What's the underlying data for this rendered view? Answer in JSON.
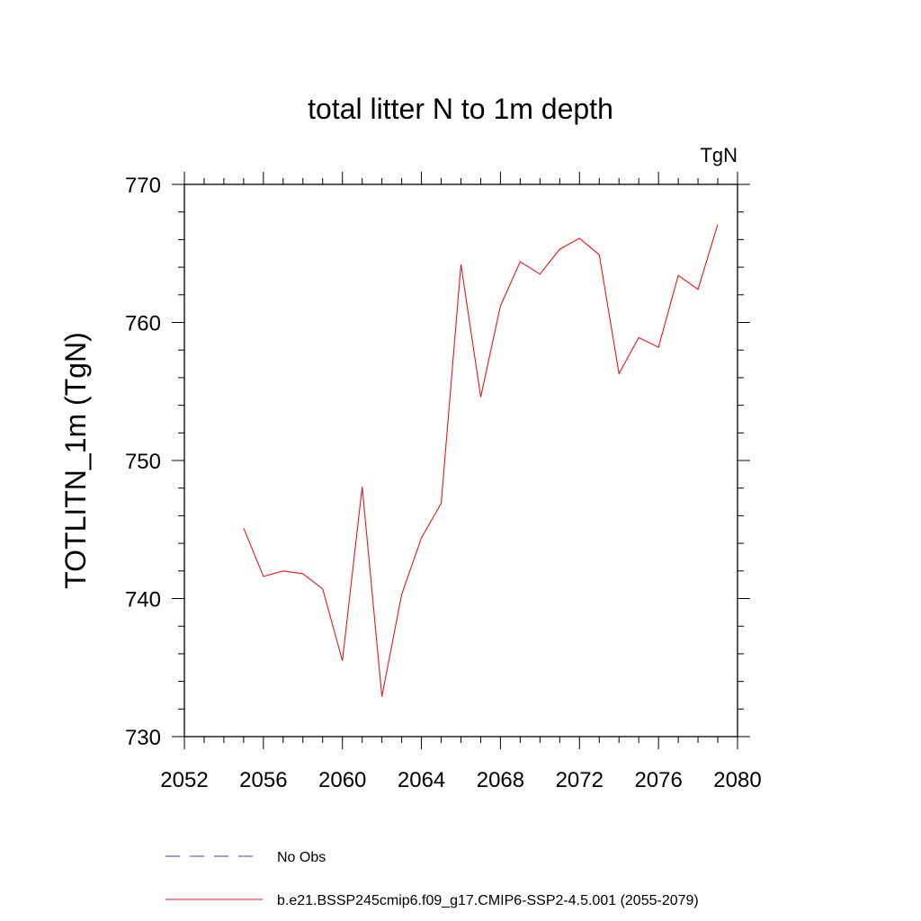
{
  "chart_data": {
    "type": "line",
    "title": "total litter N to 1m depth",
    "units_label": "TgN",
    "ylabel": "TOTLITN_1m  (TgN)",
    "xlabel": "",
    "xlim": [
      2052,
      2080
    ],
    "ylim": [
      730,
      770
    ],
    "x_ticks": [
      2052,
      2056,
      2060,
      2064,
      2068,
      2072,
      2076,
      2080
    ],
    "y_ticks": [
      730,
      740,
      750,
      760,
      770
    ],
    "grid": false,
    "series": [
      {
        "name": "b.e21.BSSP245cmip6.f09_g17.CMIP6-SSP2-4.5.001 (2055-2079)",
        "color": "#e8171c",
        "style": "solid",
        "x": [
          2055,
          2056,
          2057,
          2058,
          2059,
          2060,
          2061,
          2062,
          2063,
          2064,
          2065,
          2066,
          2067,
          2068,
          2069,
          2070,
          2071,
          2072,
          2073,
          2074,
          2075,
          2076,
          2077,
          2078,
          2079
        ],
        "y": [
          745.1,
          741.6,
          742.0,
          741.8,
          740.7,
          735.5,
          748.1,
          732.9,
          740.3,
          744.4,
          746.9,
          764.2,
          754.6,
          761.2,
          764.4,
          763.5,
          765.3,
          766.1,
          764.9,
          756.3,
          758.9,
          758.2,
          763.4,
          762.4,
          767.1
        ]
      }
    ],
    "legend": {
      "placement": "bottom",
      "entries": [
        {
          "label": "No Obs",
          "color": "#4b3fa0",
          "style": "dashed"
        },
        {
          "label": "b.e21.BSSP245cmip6.f09_g17.CMIP6-SSP2-4.5.001 (2055-2079)",
          "color": "#e8171c",
          "style": "solid"
        }
      ]
    }
  }
}
